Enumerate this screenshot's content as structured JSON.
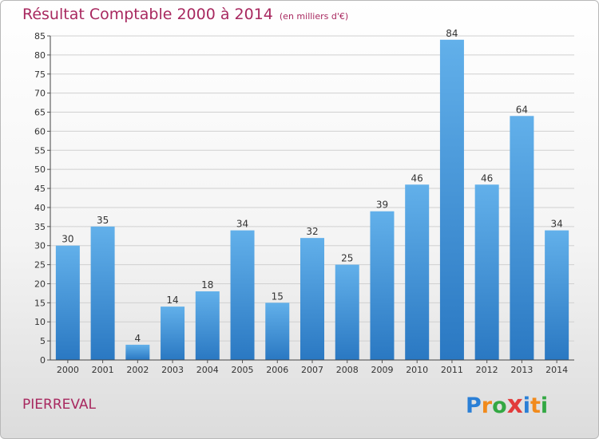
{
  "header": {
    "title": "Résultat Comptable 2000 à 2014",
    "subtitle": "(en milliers d'€)"
  },
  "footer": {
    "commune": "PIERREVAL",
    "brand": "Proxiti",
    "brand_letters": [
      {
        "char": "P",
        "color": "#2a7fd6"
      },
      {
        "char": "r",
        "color": "#f18a1c"
      },
      {
        "char": "o",
        "color": "#33a843"
      },
      {
        "char": "x",
        "color": "#e23b3b"
      },
      {
        "char": "i",
        "color": "#2a7fd6"
      },
      {
        "char": "t",
        "color": "#f18a1c"
      },
      {
        "char": "i",
        "color": "#33a843"
      }
    ]
  },
  "colors": {
    "title": "#a8285f",
    "bar_light": "#62b0ea",
    "bar_dark": "#2a78c2",
    "grid": "#d0d0d0"
  },
  "chart_data": {
    "type": "bar",
    "title": "Résultat Comptable 2000 à 2014",
    "subtitle": "(en milliers d'€)",
    "categories": [
      "2000",
      "2001",
      "2002",
      "2003",
      "2004",
      "2005",
      "2006",
      "2007",
      "2008",
      "2009",
      "2010",
      "2011",
      "2012",
      "2013",
      "2014"
    ],
    "values": [
      30,
      35,
      4,
      14,
      18,
      34,
      15,
      32,
      25,
      39,
      46,
      84,
      46,
      64,
      34
    ],
    "ylim": [
      0,
      85
    ],
    "yticks": [
      0,
      5,
      10,
      15,
      20,
      25,
      30,
      35,
      40,
      45,
      50,
      55,
      60,
      65,
      70,
      75,
      80,
      85
    ],
    "xlabel": "",
    "ylabel": "",
    "grid": true,
    "data_labels": true
  }
}
